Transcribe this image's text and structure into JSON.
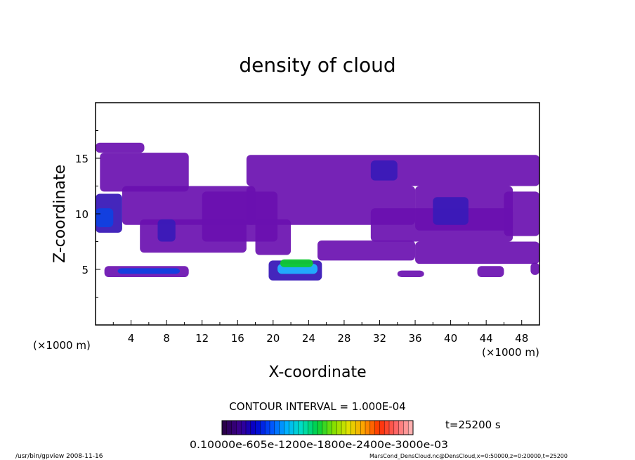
{
  "chart_data": {
    "type": "heatmap",
    "title": "density of cloud",
    "xlabel": "X-coordinate",
    "ylabel": "Z-coordinate",
    "x_unit_left": "(×1000 m)",
    "x_unit_right": "(×1000 m)",
    "xlim": [
      0,
      50
    ],
    "ylim": [
      0,
      20
    ],
    "x_ticks": [
      4,
      8,
      12,
      16,
      20,
      24,
      28,
      32,
      36,
      40,
      44,
      48
    ],
    "y_ticks": [
      5,
      10,
      15
    ],
    "contour_interval_text": "CONTOUR INTERVAL = 1.000E-04",
    "time_text": "t=25200 s",
    "colorbar_labels_text": "0.10000e-605e-1200e-1800e-2400e-3000e-03",
    "colorbar_colors": [
      "#2a004a",
      "#3a0090",
      "#0000cc",
      "#0050ff",
      "#00b0ff",
      "#00e0c0",
      "#00d040",
      "#80e000",
      "#e0e000",
      "#ffa000",
      "#ff3000",
      "#ff6060",
      "#ffb0b0"
    ],
    "footer_left": "/usr/bin/gpview   2008-11-16",
    "footer_right": "MarsCond_DensCloud.nc@DensCloud,x=0:50000,z=0:20000,t=25200",
    "regions": [
      {
        "x0": 0.0,
        "x1": 5.5,
        "z0": 15.5,
        "z1": 16.4,
        "level": 1
      },
      {
        "x0": 0.0,
        "x1": 3.0,
        "z0": 8.3,
        "z1": 11.8,
        "level": 2
      },
      {
        "x0": 0.5,
        "x1": 10.5,
        "z0": 12.0,
        "z1": 15.5,
        "level": 1
      },
      {
        "x0": 3.0,
        "x1": 18.0,
        "z0": 9.0,
        "z1": 12.5,
        "level": 1
      },
      {
        "x0": 5.0,
        "x1": 17.0,
        "z0": 6.5,
        "z1": 9.5,
        "level": 1
      },
      {
        "x0": 12.0,
        "x1": 20.5,
        "z0": 7.5,
        "z1": 12.0,
        "level": 1
      },
      {
        "x0": 1.0,
        "x1": 10.5,
        "z0": 4.3,
        "z1": 5.3,
        "level": 1
      },
      {
        "x0": 2.5,
        "x1": 9.5,
        "z0": 4.6,
        "z1": 5.1,
        "level": 3
      },
      {
        "x0": 17.0,
        "x1": 50.0,
        "z0": 12.5,
        "z1": 15.3,
        "level": 1
      },
      {
        "x0": 17.0,
        "x1": 36.0,
        "z0": 9.0,
        "z1": 12.5,
        "level": 1
      },
      {
        "x0": 36.0,
        "x1": 47.0,
        "z0": 8.5,
        "z1": 12.5,
        "level": 1
      },
      {
        "x0": 46.0,
        "x1": 50.0,
        "z0": 8.0,
        "z1": 12.0,
        "level": 1
      },
      {
        "x0": 18.0,
        "x1": 22.0,
        "z0": 6.3,
        "z1": 9.5,
        "level": 1
      },
      {
        "x0": 19.5,
        "x1": 25.5,
        "z0": 4.0,
        "z1": 5.8,
        "level": 2
      },
      {
        "x0": 25.0,
        "x1": 36.0,
        "z0": 5.8,
        "z1": 7.6,
        "level": 1
      },
      {
        "x0": 31.0,
        "x1": 47.0,
        "z0": 7.5,
        "z1": 10.5,
        "level": 1
      },
      {
        "x0": 36.0,
        "x1": 50.0,
        "z0": 5.5,
        "z1": 7.5,
        "level": 1
      },
      {
        "x0": 34.0,
        "x1": 37.0,
        "z0": 4.3,
        "z1": 4.9,
        "level": 1
      },
      {
        "x0": 43.0,
        "x1": 46.0,
        "z0": 4.3,
        "z1": 5.3,
        "level": 1
      },
      {
        "x0": 49.0,
        "x1": 50.0,
        "z0": 4.5,
        "z1": 5.6,
        "level": 1
      },
      {
        "x0": 38.0,
        "x1": 42.0,
        "z0": 9.0,
        "z1": 11.5,
        "level": 2
      },
      {
        "x0": 31.0,
        "x1": 34.0,
        "z0": 13.0,
        "z1": 14.8,
        "level": 2
      },
      {
        "x0": 0.0,
        "x1": 2.0,
        "z0": 8.8,
        "z1": 10.5,
        "level": 3
      },
      {
        "x0": 7.0,
        "x1": 9.0,
        "z0": 7.5,
        "z1": 9.5,
        "level": 2
      },
      {
        "x0": 20.5,
        "x1": 25.0,
        "z0": 4.6,
        "z1": 5.5,
        "level": 4
      },
      {
        "x0": 20.8,
        "x1": 24.5,
        "z0": 5.2,
        "z1": 5.9,
        "level": 6
      }
    ]
  }
}
